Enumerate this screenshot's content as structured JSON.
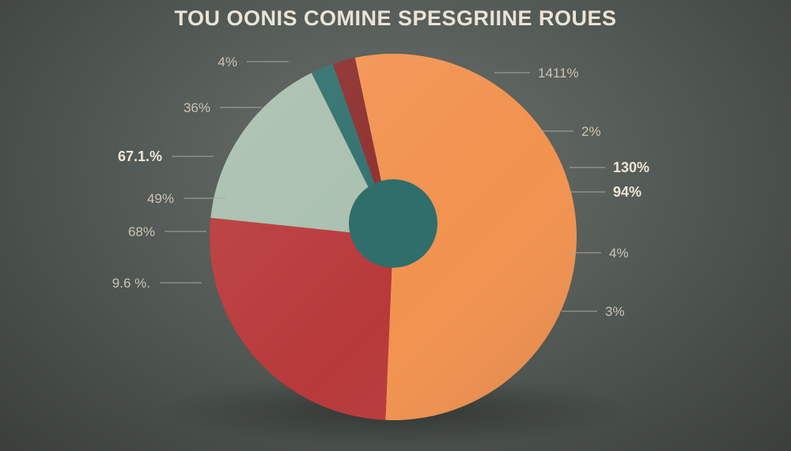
{
  "chart_data": {
    "type": "pie",
    "title": "TOU OONIS COMINE SPESGRIINE ROUES",
    "slices": [
      {
        "value": 54,
        "color": "#f2924f"
      },
      {
        "value": 26,
        "color": "#b8393a"
      },
      {
        "value": 16,
        "color": "#a9bfae"
      },
      {
        "value": 2,
        "color": "#2f6f6c"
      },
      {
        "value": 2,
        "color": "#8c2d2c"
      }
    ],
    "center_color": "#2f6e6b",
    "annotations": [
      {
        "text": "4%",
        "side": "left",
        "bold": false
      },
      {
        "text": "36%",
        "side": "left",
        "bold": false
      },
      {
        "text": "67.1.%",
        "side": "left",
        "bold": true
      },
      {
        "text": "49%",
        "side": "left",
        "bold": false
      },
      {
        "text": "68%",
        "side": "left",
        "bold": false
      },
      {
        "text": "9.6 %.",
        "side": "left",
        "bold": false
      },
      {
        "text": "1411%",
        "side": "right",
        "bold": false
      },
      {
        "text": "2%",
        "side": "right",
        "bold": false
      },
      {
        "text": "130%",
        "side": "right",
        "bold": true
      },
      {
        "text": "94%",
        "side": "right",
        "bold": true
      },
      {
        "text": "4%",
        "side": "right",
        "bold": false
      },
      {
        "text": "3%",
        "side": "right",
        "bold": false
      }
    ]
  }
}
